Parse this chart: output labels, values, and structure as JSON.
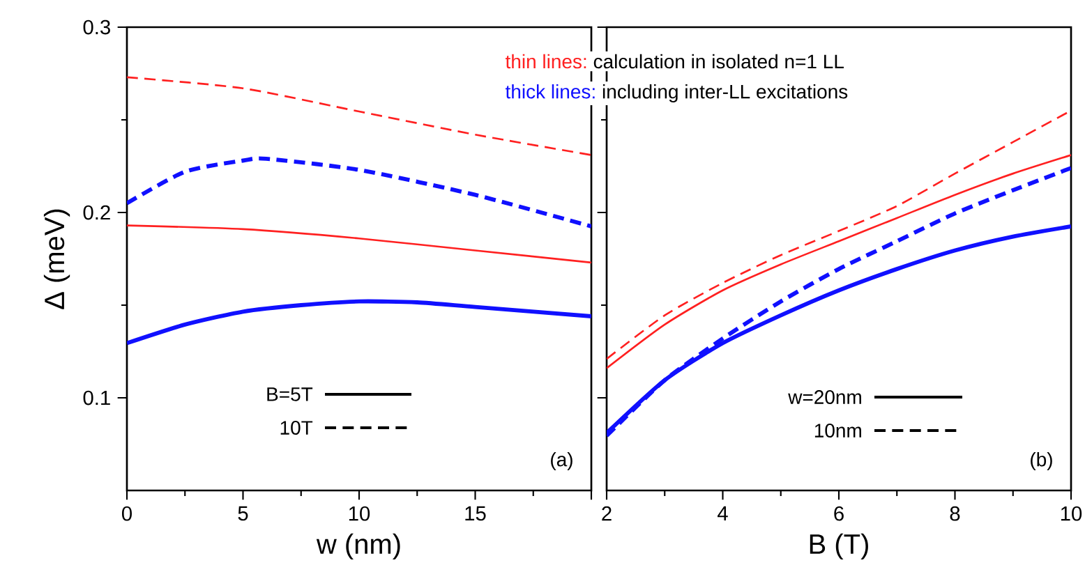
{
  "chart_data": [
    {
      "type": "line",
      "xlabel": "w (nm)",
      "ylabel": "Δ (meV)",
      "xlim": [
        0,
        20
      ],
      "ylim": [
        0.05,
        0.3
      ],
      "xticks": [
        0,
        5,
        10,
        15,
        {
          "value": 20,
          "label": null
        }
      ],
      "yticks": [
        0.1,
        0.2,
        0.3
      ],
      "annotations": [
        "B=5T",
        "10T",
        "(a)"
      ],
      "series": [
        {
          "color": "#ff2020",
          "line_style": "solid",
          "x": [
            0,
            5,
            10,
            15,
            20
          ],
          "values": [
            0.193,
            0.191,
            0.186,
            0.1795,
            0.173
          ]
        },
        {
          "color": "#ff2020",
          "line_style": "dashed",
          "x": [
            0,
            5,
            10,
            15,
            20
          ],
          "values": [
            0.273,
            0.267,
            0.2545,
            0.242,
            0.231
          ]
        },
        {
          "color": "#1010ff",
          "line_style": "solid",
          "x": [
            0,
            2.5,
            5,
            7.5,
            10,
            12.5,
            15,
            20
          ],
          "values": [
            0.1295,
            0.1395,
            0.1465,
            0.15,
            0.152,
            0.1515,
            0.149,
            0.144
          ]
        },
        {
          "color": "#1010ff",
          "line_style": "dashed",
          "x": [
            0,
            2.5,
            5,
            6,
            10,
            15,
            20
          ],
          "values": [
            0.205,
            0.222,
            0.228,
            0.229,
            0.223,
            0.2095,
            0.1925
          ]
        }
      ]
    },
    {
      "type": "line",
      "xlabel": "B (T)",
      "xlim": [
        2,
        10
      ],
      "ylim": [
        0.05,
        0.3
      ],
      "xticks": [
        2,
        4,
        6,
        8,
        10
      ],
      "yticks": [
        0.1,
        0.2,
        0.3
      ],
      "tick_labels": "x",
      "annotations": [
        "thin lines:",
        "calculation in isolated n=1 LL",
        "thick lines:",
        "including inter-LL excitations",
        "w=20nm",
        "10nm",
        "(b)"
      ],
      "series": [
        {
          "color": "#ff2020",
          "line_style": "solid",
          "x": [
            2,
            3,
            4,
            5,
            6,
            7,
            8,
            9,
            10
          ],
          "values": [
            0.116,
            0.1395,
            0.158,
            0.172,
            0.1845,
            0.197,
            0.2095,
            0.221,
            0.231
          ]
        },
        {
          "color": "#ff2020",
          "line_style": "dashed",
          "x": [
            2,
            3,
            4,
            5,
            6,
            7,
            8,
            9,
            10
          ],
          "values": [
            0.121,
            0.1445,
            0.162,
            0.177,
            0.19,
            0.2035,
            0.221,
            0.238,
            0.255
          ]
        },
        {
          "color": "#1010ff",
          "line_style": "solid",
          "x": [
            2,
            3,
            4,
            5,
            6,
            7,
            8,
            9,
            10
          ],
          "values": [
            0.081,
            0.1095,
            0.1295,
            0.1445,
            0.158,
            0.1695,
            0.1795,
            0.187,
            0.1925
          ]
        },
        {
          "color": "#1010ff",
          "line_style": "dashed",
          "x": [
            2,
            3,
            4,
            5,
            6,
            7,
            8,
            9,
            10
          ],
          "values": [
            0.0795,
            0.1095,
            0.132,
            0.152,
            0.1695,
            0.1845,
            0.1995,
            0.212,
            0.224
          ]
        }
      ]
    }
  ]
}
